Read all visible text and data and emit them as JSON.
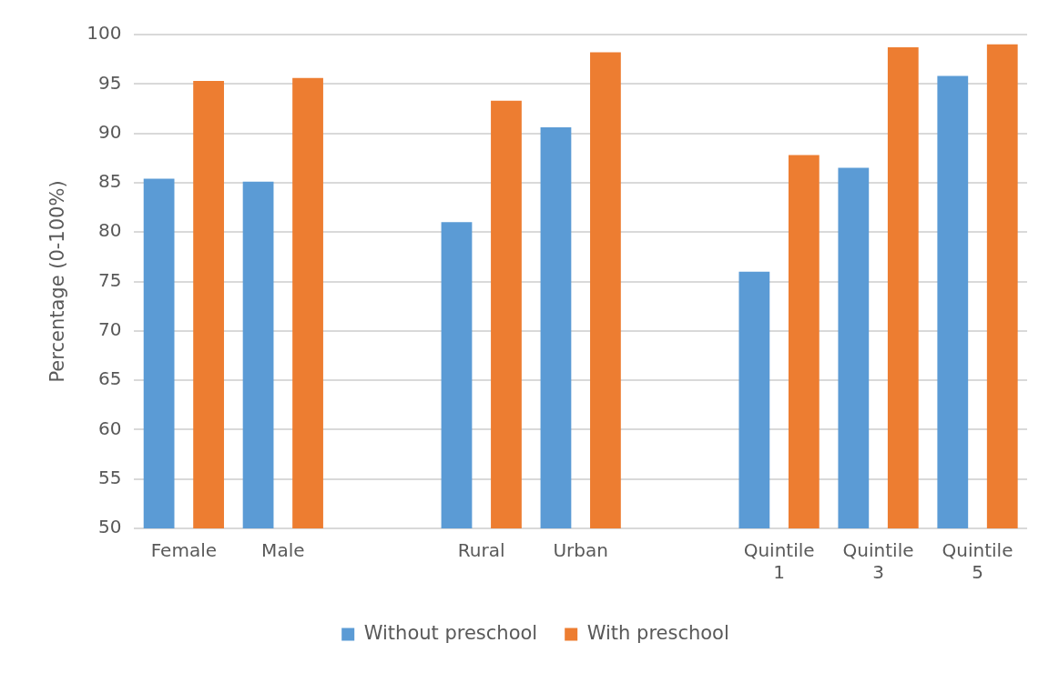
{
  "chart_data": {
    "type": "bar",
    "ylabel": "Percentage (0-100%)",
    "categories": [
      "Female",
      "Male",
      null,
      "Rural",
      "Urban",
      null,
      "Quintile 1",
      "Quintile 3",
      "Quintile 5"
    ],
    "series": [
      {
        "name": "Without preschool",
        "color": "#5b9bd5",
        "values": [
          85.4,
          85.1,
          null,
          81.0,
          90.6,
          null,
          76.0,
          86.5,
          95.8
        ]
      },
      {
        "name": "With preschool",
        "color": "#ed7d31",
        "values": [
          95.3,
          95.6,
          null,
          93.3,
          98.2,
          null,
          87.8,
          98.7,
          99.0
        ]
      }
    ],
    "ylim": [
      50,
      100
    ],
    "yticks": [
      50,
      55,
      60,
      65,
      70,
      75,
      80,
      85,
      90,
      95,
      100
    ],
    "grid": "y",
    "legend": "bottom"
  }
}
